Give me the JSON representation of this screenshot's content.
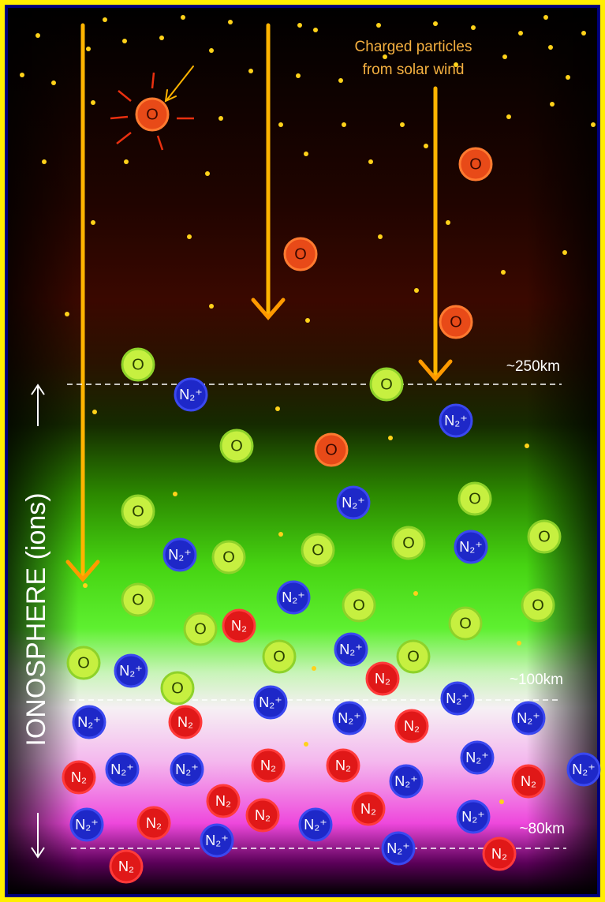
{
  "annotation": {
    "line1": "Charged particles",
    "line2": "from solar wind"
  },
  "altitudes": [
    "~250km",
    "~100km",
    "~80km"
  ],
  "axis_label": "IONOSPHERE (ions)",
  "particle_labels": {
    "oxygen": "O",
    "nitrogen_ion": "N₂⁺",
    "nitrogen": "N₂"
  }
}
